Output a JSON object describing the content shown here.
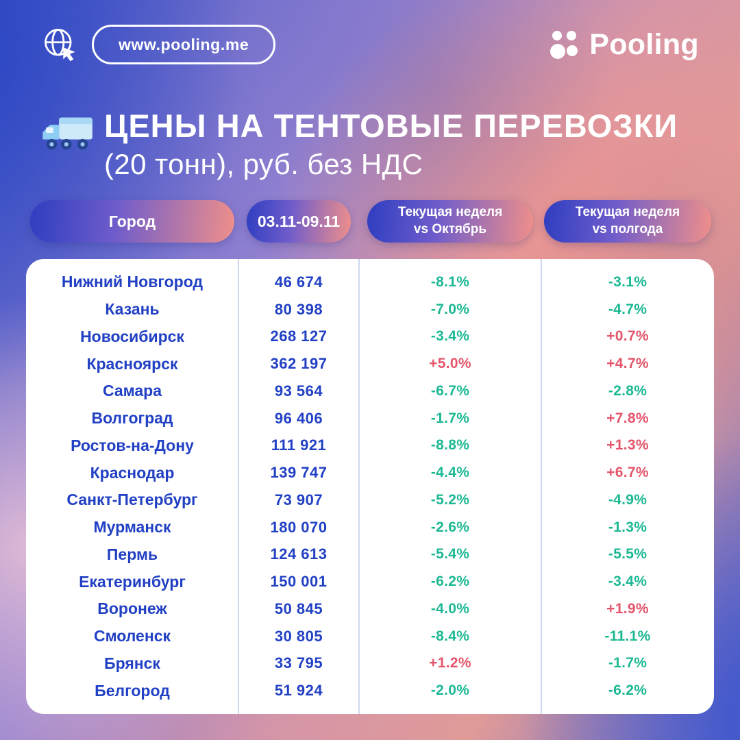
{
  "colors": {
    "negative": "#1cb894",
    "positive": "#e4556b",
    "city_text": "#2140c4",
    "pill_gradient_start": "#2e3ec0",
    "pill_gradient_end": "#ef8f8a",
    "card_bg": "#ffffff"
  },
  "header": {
    "url": "www.pooling.me",
    "brand": "Pooling"
  },
  "title": {
    "line1": "ЦЕНЫ НА ТЕНТОВЫЕ ПЕРЕВОЗКИ",
    "line2": "(20 тонн), руб. без НДС"
  },
  "chart_data": {
    "type": "table",
    "title": "ЦЕНЫ НА ТЕНТОВЫЕ ПЕРЕВОЗКИ (20 тонн), руб. без НДС",
    "columns": [
      "Город",
      "03.11-09.11",
      "Текущая неделя\nvs Октябрь",
      "Текущая неделя\nvs полгода"
    ],
    "rows": [
      [
        "Нижний Новгород",
        "46 674",
        "-8.1%",
        "-3.1%"
      ],
      [
        "Казань",
        "80 398",
        "-7.0%",
        "-4.7%"
      ],
      [
        "Новосибирск",
        "268 127",
        "-3.4%",
        "+0.7%"
      ],
      [
        "Красноярск",
        "362 197",
        "+5.0%",
        "+4.7%"
      ],
      [
        "Самара",
        "93 564",
        "-6.7%",
        "-2.8%"
      ],
      [
        "Волгоград",
        "96 406",
        "-1.7%",
        "+7.8%"
      ],
      [
        "Ростов-на-Дону",
        "111 921",
        "-8.8%",
        "+1.3%"
      ],
      [
        "Краснодар",
        "139 747",
        "-4.4%",
        "+6.7%"
      ],
      [
        "Санкт-Петербург",
        "73 907",
        "-5.2%",
        "-4.9%"
      ],
      [
        "Мурманск",
        "180 070",
        "-2.6%",
        "-1.3%"
      ],
      [
        "Пермь",
        "124 613",
        "-5.4%",
        "-5.5%"
      ],
      [
        "Екатеринбург",
        "150 001",
        "-6.2%",
        "-3.4%"
      ],
      [
        "Воронеж",
        "50 845",
        "-4.0%",
        "+1.9%"
      ],
      [
        "Смоленск",
        "30 805",
        "-8.4%",
        "-11.1%"
      ],
      [
        "Брянск",
        "33 795",
        "+1.2%",
        "-1.7%"
      ],
      [
        "Белгород",
        "51 924",
        "-2.0%",
        "-6.2%"
      ]
    ]
  }
}
